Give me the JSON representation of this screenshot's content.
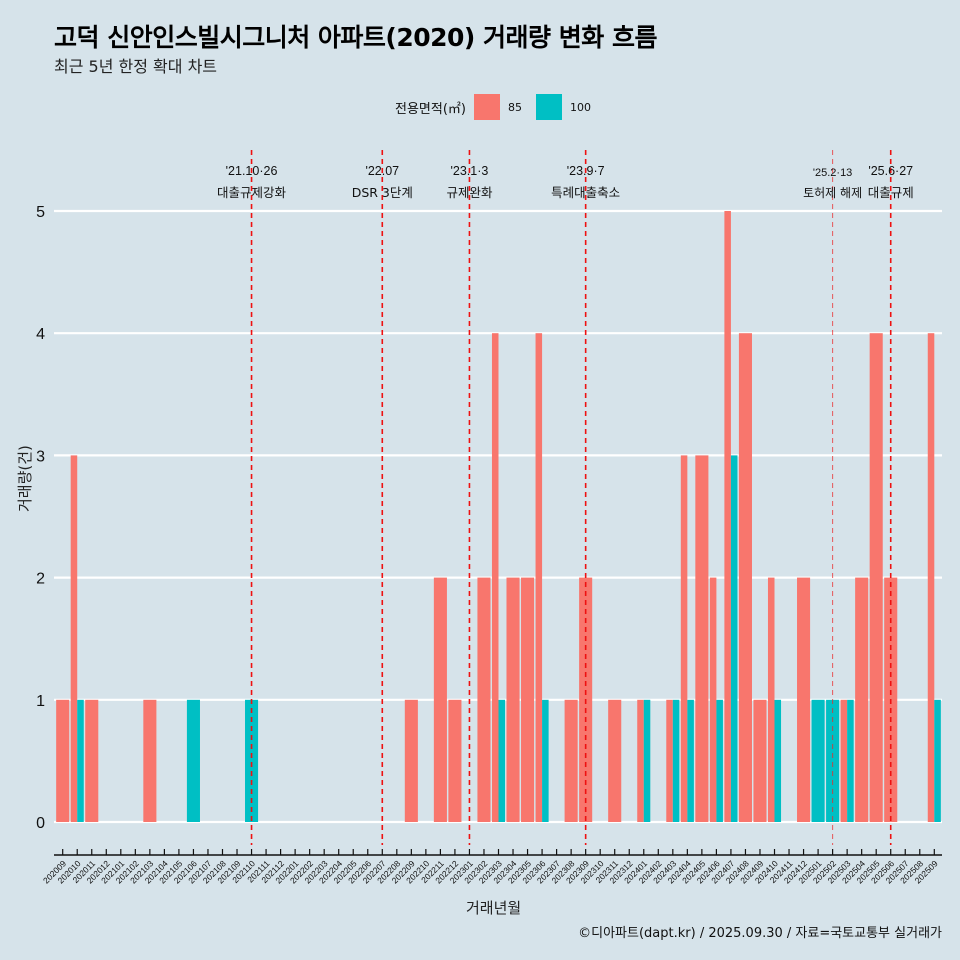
{
  "title": "고덕 신안인스빌시그니처 아파트(2020) 거래량 변화 흐름",
  "subtitle": "최근 5년 한정 확대 차트",
  "caption": "©디아파트(dapt.kr) / 2025.09.30 / 자료=국토교통부 실거래가",
  "legend": {
    "title": "전용면적(㎡)",
    "items": [
      {
        "label": "85",
        "color": "#F8766D"
      },
      {
        "label": "100",
        "color": "#00BFC4"
      }
    ]
  },
  "chart_data": {
    "type": "bar",
    "title": "고덕 신안인스빌시그니처 아파트(2020) 거래량 변화 흐름",
    "subtitle": "최근 5년 한정 확대 차트",
    "xlabel": "거래년월",
    "ylabel": "거래량(건)",
    "ylim": [
      0,
      5
    ],
    "yticks": [
      0,
      1,
      2,
      3,
      4,
      5
    ],
    "grid": true,
    "legend_position": "top",
    "categories": [
      "202009",
      "202010",
      "202011",
      "202012",
      "202101",
      "202102",
      "202103",
      "202104",
      "202105",
      "202106",
      "202107",
      "202108",
      "202109",
      "202110",
      "202111",
      "202112",
      "202201",
      "202202",
      "202203",
      "202204",
      "202205",
      "202206",
      "202207",
      "202208",
      "202209",
      "202210",
      "202211",
      "202212",
      "202301",
      "202302",
      "202303",
      "202304",
      "202305",
      "202306",
      "202307",
      "202308",
      "202309",
      "202310",
      "202311",
      "202312",
      "202401",
      "202402",
      "202403",
      "202404",
      "202405",
      "202406",
      "202407",
      "202408",
      "202409",
      "202410",
      "202411",
      "202412",
      "202501",
      "202502",
      "202503",
      "202504",
      "202505",
      "202506",
      "202507",
      "202508",
      "202509"
    ],
    "series": [
      {
        "name": "85",
        "color": "#F8766D",
        "values": [
          1,
          3,
          1,
          0,
          0,
          0,
          1,
          0,
          0,
          0,
          0,
          0,
          0,
          0,
          0,
          0,
          0,
          0,
          0,
          0,
          0,
          0,
          0,
          0,
          1,
          0,
          2,
          1,
          0,
          2,
          4,
          2,
          2,
          4,
          0,
          1,
          2,
          0,
          1,
          0,
          1,
          0,
          1,
          3,
          3,
          2,
          5,
          4,
          1,
          2,
          0,
          2,
          0,
          0,
          1,
          2,
          4,
          2,
          0,
          0,
          4
        ]
      },
      {
        "name": "100",
        "color": "#00BFC4",
        "values": [
          0,
          1,
          0,
          0,
          0,
          0,
          0,
          0,
          0,
          1,
          0,
          0,
          0,
          1,
          0,
          0,
          0,
          0,
          0,
          0,
          0,
          0,
          0,
          0,
          0,
          0,
          0,
          0,
          0,
          0,
          1,
          0,
          0,
          1,
          0,
          0,
          0,
          0,
          0,
          0,
          1,
          0,
          1,
          1,
          0,
          1,
          3,
          0,
          0,
          1,
          0,
          0,
          1,
          1,
          1,
          0,
          0,
          0,
          0,
          0,
          1
        ]
      }
    ],
    "annotations": [
      {
        "month": "202110",
        "date": "'21.10·26",
        "label": "대출규제강화",
        "style": "major"
      },
      {
        "month": "202207",
        "date": "'22.07",
        "label": "DSR 3단계",
        "style": "major"
      },
      {
        "month": "202301",
        "date": "'23.1·3",
        "label": "규제완화",
        "style": "major"
      },
      {
        "month": "202309",
        "date": "'23.9·7",
        "label": "특례대출축소",
        "style": "major"
      },
      {
        "month": "202502",
        "date": "'25.2·13",
        "label": "토허제 해제",
        "style": "minor"
      },
      {
        "month": "202506",
        "date": "'25.6·27",
        "label": "대출규제",
        "style": "major"
      }
    ]
  }
}
